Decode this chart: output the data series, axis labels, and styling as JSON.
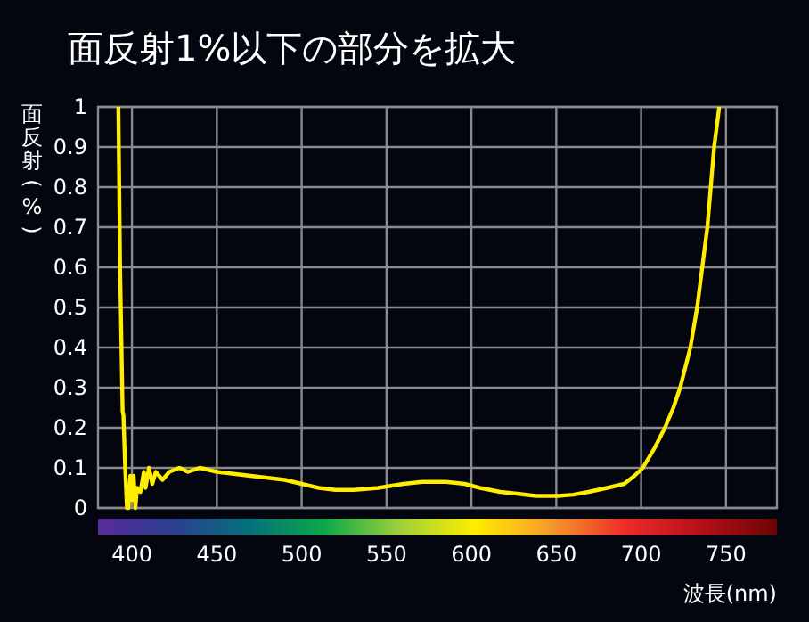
{
  "chart_data": {
    "type": "line",
    "title": "面反射1%以下の部分を拡大",
    "xlabel": "波長(nm)",
    "ylabel": "面反射(%)",
    "series": [
      {
        "color": "#ffee00",
        "x": [
          392,
          393,
          394.5,
          395,
          396,
          397,
          398,
          399,
          400,
          401,
          402,
          403,
          405,
          407,
          408,
          410,
          412,
          414,
          418,
          422,
          428,
          433,
          440,
          450,
          460,
          470,
          480,
          490,
          500,
          510,
          520,
          531,
          545,
          560,
          571,
          585,
          596,
          605,
          617,
          628,
          638,
          651,
          660,
          669,
          680,
          690,
          696,
          701,
          708,
          714,
          719,
          723,
          729,
          733,
          736,
          739,
          743,
          746
        ],
        "values": [
          1,
          0.6,
          0.24,
          0.23,
          0.1,
          0,
          0,
          0.08,
          0.02,
          0.08,
          0,
          0.05,
          0.04,
          0.09,
          0.05,
          0.1,
          0.06,
          0.09,
          0.07,
          0.09,
          0.1,
          0.09,
          0.1,
          0.09,
          0.085,
          0.08,
          0.075,
          0.07,
          0.06,
          0.05,
          0.045,
          0.045,
          0.05,
          0.06,
          0.065,
          0.065,
          0.06,
          0.05,
          0.04,
          0.035,
          0.03,
          0.03,
          0.033,
          0.04,
          0.05,
          0.06,
          0.08,
          0.1,
          0.15,
          0.2,
          0.25,
          0.3,
          0.4,
          0.5,
          0.6,
          0.7,
          0.9,
          1
        ]
      }
    ],
    "xlim": [
      380,
      780
    ],
    "xticks": [
      400,
      450,
      500,
      550,
      600,
      650,
      700,
      750
    ],
    "ylim": [
      0,
      1
    ],
    "yticks": [
      0,
      0.1,
      0.2,
      0.3,
      0.4,
      0.5,
      0.6,
      0.7,
      0.8,
      0.9,
      1
    ],
    "grid": true,
    "line_style": "solid"
  }
}
